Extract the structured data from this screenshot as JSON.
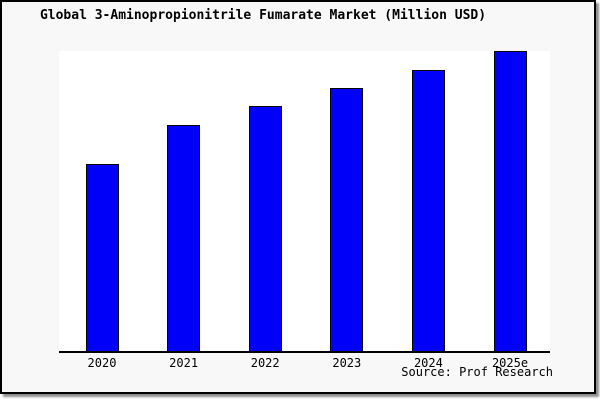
{
  "chart_data": {
    "type": "bar",
    "title": "Global 3-Aminopropionitrile Fumarate Market (Million USD)",
    "categories": [
      "2020",
      "2021",
      "2022",
      "2023",
      "2024",
      "2025e"
    ],
    "values": [
      62.4,
      75.2,
      81.6,
      87.6,
      93.7,
      100
    ],
    "value_note": "No y-axis scale or gridlines shown; values are relative bar heights indexed to 2025e = 100",
    "xlabel": "",
    "ylabel": "",
    "ylim": [
      0,
      100
    ],
    "grid": false,
    "legend": null,
    "source": "Source: Prof Research"
  },
  "colors": {
    "bar_fill": "#0000f8",
    "bar_border": "#000000",
    "plot_background": "#ffffff",
    "page_background": "#f8f8f8",
    "frame_border": "#000000",
    "text": "#000000"
  }
}
